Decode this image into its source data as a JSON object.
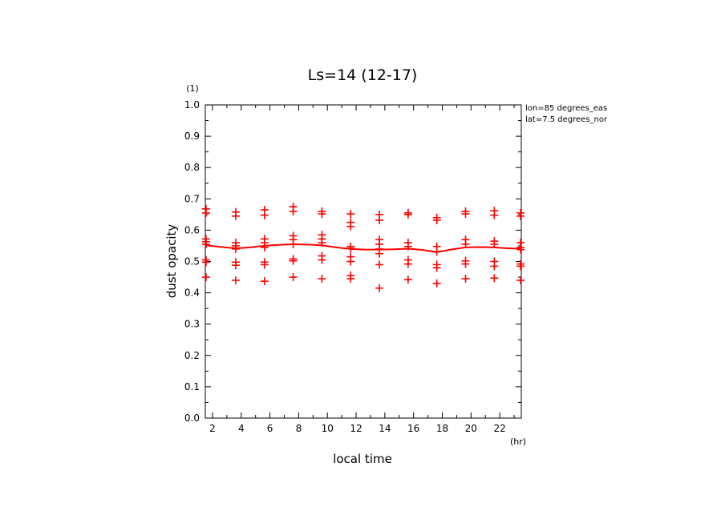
{
  "chart_data": {
    "type": "scatter",
    "title": "Ls=14 (12-17)",
    "xlabel": "local time",
    "ylabel": "dust opacity",
    "xunit": "(hr)",
    "yunit": "(1)",
    "xlim": [
      1.5,
      23.5
    ],
    "ylim": [
      0.0,
      1.0
    ],
    "xticks": [
      2,
      4,
      6,
      8,
      10,
      12,
      14,
      16,
      18,
      20,
      22
    ],
    "yticks": [
      0.0,
      0.1,
      0.2,
      0.3,
      0.4,
      0.5,
      0.6,
      0.7,
      0.8,
      0.9,
      1.0
    ],
    "annotations": [
      "lon=85 degrees_eas",
      "lat=7.5 degrees_nor"
    ],
    "grid": false,
    "color": "#ff0000",
    "series": [
      {
        "kind": "points",
        "points": [
          [
            1.55,
            0.668
          ],
          [
            1.55,
            0.655
          ],
          [
            1.55,
            0.572
          ],
          [
            1.55,
            0.563
          ],
          [
            1.55,
            0.555
          ],
          [
            1.55,
            0.505
          ],
          [
            1.55,
            0.498
          ],
          [
            1.55,
            0.45
          ],
          [
            3.62,
            0.658
          ],
          [
            3.62,
            0.645
          ],
          [
            3.62,
            0.56
          ],
          [
            3.62,
            0.55
          ],
          [
            3.62,
            0.54
          ],
          [
            3.62,
            0.498
          ],
          [
            3.62,
            0.488
          ],
          [
            3.62,
            0.44
          ],
          [
            5.62,
            0.665
          ],
          [
            5.62,
            0.648
          ],
          [
            5.62,
            0.572
          ],
          [
            5.62,
            0.56
          ],
          [
            5.62,
            0.545
          ],
          [
            5.62,
            0.498
          ],
          [
            5.62,
            0.49
          ],
          [
            5.62,
            0.437
          ],
          [
            7.62,
            0.675
          ],
          [
            7.62,
            0.66
          ],
          [
            7.62,
            0.582
          ],
          [
            7.62,
            0.57
          ],
          [
            7.62,
            0.555
          ],
          [
            7.62,
            0.508
          ],
          [
            7.62,
            0.502
          ],
          [
            7.62,
            0.45
          ],
          [
            9.62,
            0.66
          ],
          [
            9.62,
            0.652
          ],
          [
            9.62,
            0.585
          ],
          [
            9.62,
            0.572
          ],
          [
            9.62,
            0.56
          ],
          [
            9.62,
            0.518
          ],
          [
            9.62,
            0.505
          ],
          [
            9.62,
            0.445
          ],
          [
            11.62,
            0.652
          ],
          [
            11.62,
            0.625
          ],
          [
            11.62,
            0.612
          ],
          [
            11.62,
            0.548
          ],
          [
            11.62,
            0.542
          ],
          [
            11.62,
            0.515
          ],
          [
            11.62,
            0.5
          ],
          [
            11.62,
            0.455
          ],
          [
            11.62,
            0.445
          ],
          [
            13.62,
            0.65
          ],
          [
            13.62,
            0.632
          ],
          [
            13.62,
            0.57
          ],
          [
            13.62,
            0.555
          ],
          [
            13.62,
            0.54
          ],
          [
            13.62,
            0.525
          ],
          [
            13.62,
            0.49
          ],
          [
            13.62,
            0.415
          ],
          [
            15.62,
            0.655
          ],
          [
            15.62,
            0.65
          ],
          [
            15.62,
            0.56
          ],
          [
            15.62,
            0.548
          ],
          [
            15.62,
            0.505
          ],
          [
            15.62,
            0.492
          ],
          [
            15.62,
            0.442
          ],
          [
            17.62,
            0.64
          ],
          [
            17.62,
            0.632
          ],
          [
            17.62,
            0.548
          ],
          [
            17.62,
            0.532
          ],
          [
            17.62,
            0.49
          ],
          [
            17.62,
            0.48
          ],
          [
            17.62,
            0.43
          ],
          [
            19.62,
            0.66
          ],
          [
            19.62,
            0.652
          ],
          [
            19.62,
            0.57
          ],
          [
            19.62,
            0.555
          ],
          [
            19.62,
            0.502
          ],
          [
            19.62,
            0.492
          ],
          [
            19.62,
            0.445
          ],
          [
            21.62,
            0.662
          ],
          [
            21.62,
            0.648
          ],
          [
            21.62,
            0.565
          ],
          [
            21.62,
            0.555
          ],
          [
            21.62,
            0.5
          ],
          [
            21.62,
            0.485
          ],
          [
            21.62,
            0.447
          ],
          [
            23.45,
            0.655
          ],
          [
            23.45,
            0.645
          ],
          [
            23.45,
            0.56
          ],
          [
            23.45,
            0.545
          ],
          [
            23.45,
            0.538
          ],
          [
            23.45,
            0.492
          ],
          [
            23.45,
            0.485
          ],
          [
            23.45,
            0.44
          ]
        ]
      },
      {
        "kind": "line",
        "x": [
          1.5,
          2.5,
          3.62,
          4.6,
          5.62,
          6.6,
          7.62,
          8.6,
          9.62,
          10.6,
          11.62,
          12.6,
          13.62,
          14.6,
          15.62,
          16.6,
          17.62,
          18.6,
          19.62,
          20.6,
          21.62,
          22.6,
          23.5
        ],
        "y": [
          0.552,
          0.547,
          0.542,
          0.545,
          0.55,
          0.553,
          0.555,
          0.554,
          0.552,
          0.545,
          0.54,
          0.538,
          0.538,
          0.539,
          0.541,
          0.537,
          0.53,
          0.538,
          0.545,
          0.546,
          0.545,
          0.542,
          0.541
        ]
      }
    ]
  }
}
